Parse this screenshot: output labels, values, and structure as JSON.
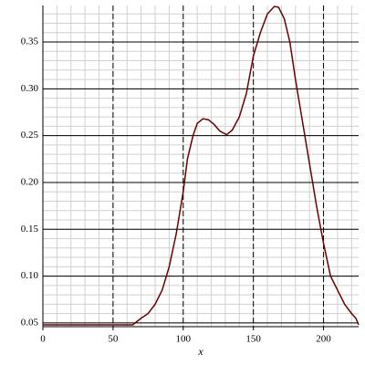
{
  "chart_data": {
    "type": "line",
    "x_label": "x",
    "x": [
      0,
      64,
      70,
      75,
      80,
      85,
      90,
      95,
      100,
      103,
      107,
      110,
      114,
      118,
      122,
      126,
      131,
      135,
      140,
      145,
      150,
      155,
      160,
      165,
      168,
      172,
      176,
      180,
      185,
      190,
      195,
      200,
      205,
      210,
      215,
      220,
      223,
      225
    ],
    "series": [
      {
        "color": "#6b0000",
        "values": [
          0.048,
          0.048,
          0.055,
          0.06,
          0.07,
          0.085,
          0.11,
          0.145,
          0.19,
          0.225,
          0.25,
          0.263,
          0.268,
          0.267,
          0.262,
          0.255,
          0.251,
          0.256,
          0.27,
          0.295,
          0.335,
          0.36,
          0.38,
          0.388,
          0.387,
          0.375,
          0.35,
          0.31,
          0.265,
          0.22,
          0.175,
          0.135,
          0.1,
          0.085,
          0.07,
          0.06,
          0.055,
          0.048
        ]
      }
    ],
    "xlim": [
      0,
      225
    ],
    "xticks": [
      0,
      50,
      100,
      150,
      200
    ],
    "ylim": [
      0.046,
      0.389
    ],
    "yticks": [
      0.05,
      {
        "value": 0.1,
        "label": "0.10"
      },
      0.15,
      {
        "value": 0.2,
        "label": "0.20"
      },
      0.25,
      {
        "value": 0.3,
        "label": "0.30"
      },
      0.35
    ],
    "grid": true,
    "minor_grid": true
  }
}
